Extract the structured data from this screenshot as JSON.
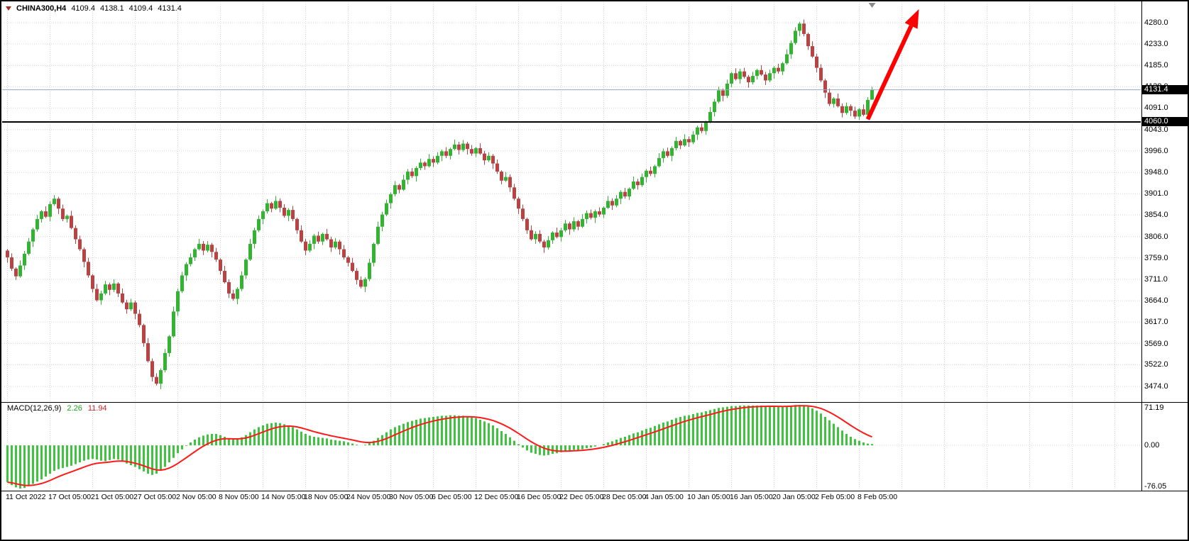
{
  "header": {
    "symbol_period": "CHINA300,H4",
    "open": "4109.4",
    "high": "4138.1",
    "low": "4109.4",
    "close": "4131.4"
  },
  "price_axis": {
    "current_price_tag": "4131.4",
    "hline_tag": "4060.0"
  },
  "macd_panel": {
    "label": "MACD(12,26,9)",
    "main_value": "2.26",
    "signal_value": "11.94",
    "axis_max": "71.19",
    "axis_zero": "0.00",
    "axis_min": "-76.05"
  },
  "chart_data": {
    "type": "candlestick",
    "symbol": "CHINA300",
    "timeframe": "H4",
    "price_range": [
      3474.0,
      4280.0
    ],
    "price_gridlines": [
      4280,
      4233,
      4185,
      4138,
      4091,
      4043,
      3996,
      3948,
      3901,
      3854,
      3806,
      3759,
      3711,
      3664,
      3617,
      3569,
      3522,
      3474
    ],
    "time_labels": [
      "11 Oct 2022",
      "17 Oct 05:00",
      "21 Oct 05:00",
      "27 Oct 05:00",
      "2 Nov 05:00",
      "8 Nov 05:00",
      "14 Nov 05:00",
      "18 Nov 05:00",
      "24 Nov 05:00",
      "30 Nov 05:00",
      "6 Dec 05:00",
      "12 Dec 05:00",
      "16 Dec 05:00",
      "22 Dec 05:00",
      "28 Dec 05:00",
      "4 Jan 05:00",
      "10 Jan 05:00",
      "16 Jan 05:00",
      "20 Jan 05:00",
      "2 Feb 05:00",
      "8 Feb 05:00"
    ],
    "bars_per_label": 10,
    "first_open": 3775,
    "closes": [
      3760,
      3735,
      3718,
      3742,
      3768,
      3795,
      3822,
      3845,
      3862,
      3850,
      3878,
      3890,
      3868,
      3845,
      3852,
      3825,
      3800,
      3778,
      3750,
      3720,
      3690,
      3665,
      3680,
      3700,
      3688,
      3702,
      3680,
      3660,
      3645,
      3660,
      3635,
      3610,
      3570,
      3530,
      3495,
      3480,
      3510,
      3548,
      3585,
      3640,
      3685,
      3720,
      3745,
      3760,
      3778,
      3790,
      3775,
      3788,
      3772,
      3755,
      3730,
      3705,
      3680,
      3668,
      3690,
      3720,
      3755,
      3790,
      3820,
      3845,
      3862,
      3880,
      3868,
      3885,
      3870,
      3852,
      3865,
      3845,
      3820,
      3795,
      3775,
      3790,
      3808,
      3795,
      3812,
      3800,
      3782,
      3795,
      3778,
      3760,
      3748,
      3730,
      3710,
      3695,
      3712,
      3748,
      3790,
      3828,
      3855,
      3880,
      3900,
      3920,
      3910,
      3932,
      3950,
      3940,
      3958,
      3970,
      3962,
      3978,
      3970,
      3985,
      3995,
      3985,
      4000,
      4010,
      3998,
      4012,
      4000,
      3990,
      4002,
      3990,
      3975,
      3985,
      3968,
      3950,
      3930,
      3938,
      3915,
      3890,
      3868,
      3845,
      3820,
      3800,
      3812,
      3795,
      3782,
      3798,
      3815,
      3805,
      3820,
      3835,
      3822,
      3840,
      3828,
      3845,
      3858,
      3848,
      3862,
      3855,
      3870,
      3885,
      3875,
      3890,
      3905,
      3895,
      3912,
      3928,
      3920,
      3938,
      3952,
      3945,
      3962,
      3980,
      3995,
      3985,
      4002,
      4018,
      4008,
      4022,
      4015,
      4032,
      4048,
      4040,
      4060,
      4082,
      4105,
      4130,
      4118,
      4145,
      4168,
      4155,
      4172,
      4160,
      4148,
      4162,
      4175,
      4165,
      4152,
      4168,
      4180,
      4172,
      4190,
      4210,
      4235,
      4262,
      4278,
      4255,
      4228,
      4205,
      4180,
      4152,
      4125,
      4100,
      4112,
      4095,
      4080,
      4095,
      4085,
      4072,
      4088,
      4076,
      4109,
      4131.4
    ],
    "last_candle_ohlc": [
      4109.4,
      4138.1,
      4109.4,
      4131.4
    ],
    "wick_up": [
      4,
      9,
      3,
      11,
      6,
      8
    ],
    "wick_down": [
      10,
      4,
      12,
      5,
      8,
      3
    ],
    "horizontal_line_price": 4060.0,
    "current_price": 4131.4,
    "arrow_annotation": {
      "from_bar": 202,
      "from_price": 4066,
      "to_bar": 214,
      "to_price": 4310,
      "color": "#ff0000"
    },
    "shift_marker_bar": 203,
    "macd": {
      "fast": 12,
      "slow": 26,
      "signal": 9,
      "range": [
        -76.05,
        71.19
      ],
      "main": [
        -65,
        -70,
        -74,
        -76,
        -75,
        -72,
        -68,
        -64,
        -60,
        -55,
        -50,
        -45,
        -42,
        -40,
        -38,
        -36,
        -33,
        -30,
        -27,
        -25,
        -24,
        -25,
        -27,
        -28,
        -26,
        -24,
        -25,
        -28,
        -32,
        -35,
        -38,
        -42,
        -46,
        -50,
        -52,
        -50,
        -45,
        -38,
        -30,
        -22,
        -14,
        -7,
        -1,
        5,
        10,
        14,
        17,
        19,
        20,
        20,
        18,
        15,
        12,
        10,
        11,
        14,
        18,
        23,
        28,
        32,
        35,
        38,
        39,
        40,
        39,
        37,
        35,
        32,
        28,
        24,
        20,
        17,
        15,
        14,
        13,
        12,
        10,
        9,
        8,
        7,
        5,
        3,
        1,
        0,
        1,
        4,
        8,
        13,
        18,
        23,
        28,
        32,
        35,
        38,
        41,
        43,
        45,
        47,
        48,
        49,
        50,
        51,
        52,
        52,
        53,
        53,
        52,
        52,
        51,
        49,
        48,
        45,
        42,
        39,
        35,
        30,
        25,
        20,
        14,
        8,
        2,
        -4,
        -9,
        -13,
        -15,
        -17,
        -18,
        -17,
        -15,
        -14,
        -12,
        -10,
        -9,
        -8,
        -8,
        -7,
        -5,
        -4,
        -2,
        0,
        2,
        5,
        7,
        10,
        13,
        15,
        18,
        21,
        23,
        26,
        29,
        31,
        34,
        37,
        40,
        42,
        45,
        48,
        50,
        52,
        53,
        55,
        57,
        58,
        60,
        62,
        64,
        66,
        67,
        68,
        69,
        69,
        70,
        70,
        70,
        70,
        70,
        70,
        69,
        69,
        69,
        68,
        68,
        69,
        70,
        71,
        71,
        70,
        68,
        65,
        61,
        56,
        50,
        44,
        38,
        32,
        26,
        20,
        15,
        11,
        8,
        5,
        3,
        2.26
      ]
    },
    "colors": {
      "up": "#32b332",
      "down": "#b94343",
      "macd_histogram": "#3fc43f",
      "macd_signal": "#ff1a1a",
      "grid": "#d4d4d4",
      "hline": "#000000",
      "current_price_line": "#94a8c0",
      "shift_marker": "#8a8a8a"
    }
  }
}
